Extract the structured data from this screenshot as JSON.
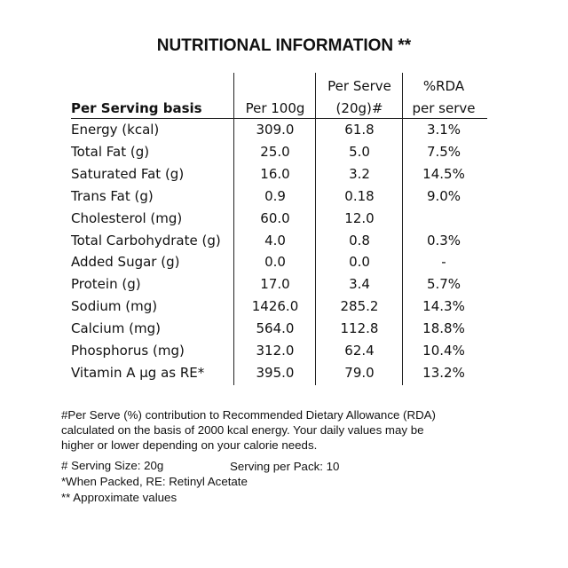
{
  "title": "NUTRITIONAL INFORMATION **",
  "headers": {
    "basis": "Per Serving basis",
    "per100": "Per 100g",
    "serve_line1": "Per Serve",
    "serve_line2": "(20g)#",
    "rda_line1": "%RDA",
    "rda_line2": "per serve"
  },
  "rows": [
    {
      "label": "Energy (kcal)",
      "per100": "309.0",
      "serve": "61.8",
      "rda": "3.1%"
    },
    {
      "label": "Total Fat (g)",
      "per100": "25.0",
      "serve": "5.0",
      "rda": "7.5%"
    },
    {
      "label": "Saturated Fat (g)",
      "per100": "16.0",
      "serve": "3.2",
      "rda": "14.5%"
    },
    {
      "label": "Trans Fat (g)",
      "per100": "0.9",
      "serve": "0.18",
      "rda": "9.0%"
    },
    {
      "label": "Cholesterol (mg)",
      "per100": "60.0",
      "serve": "12.0",
      "rda": ""
    },
    {
      "label": "Total Carbohydrate (g)",
      "per100": "4.0",
      "serve": "0.8",
      "rda": "0.3%"
    },
    {
      "label": "Added Sugar (g)",
      "per100": "0.0",
      "serve": "0.0",
      "rda": "-"
    },
    {
      "label": "Protein  (g)",
      "per100": "17.0",
      "serve": "3.4",
      "rda": "5.7%"
    },
    {
      "label": "Sodium (mg)",
      "per100": "1426.0",
      "serve": "285.2",
      "rda": "14.3%"
    },
    {
      "label": "Calcium (mg)",
      "per100": "564.0",
      "serve": "112.8",
      "rda": "18.8%"
    },
    {
      "label": "Phosphorus (mg)",
      "per100": "312.0",
      "serve": "62.4",
      "rda": "10.4%"
    },
    {
      "label": "Vitamin A µg as RE*",
      "per100": "395.0",
      "serve": "79.0",
      "rda": "13.2%"
    }
  ],
  "footer": {
    "rda_note_1": "#Per Serve (%) contribution to Recommended Dietary Allowance (RDA)",
    "rda_note_2": "calculated on the basis of 2000 kcal energy. Your daily values may be",
    "rda_note_3": "higher or lower depending on your calorie needs.",
    "serving_size": "# Serving Size: 20g",
    "serving_per_pack": "Serving per Pack: 10",
    "packed_note": "*When Packed, RE: Retinyl Acetate",
    "approx_note": "** Approximate values"
  }
}
